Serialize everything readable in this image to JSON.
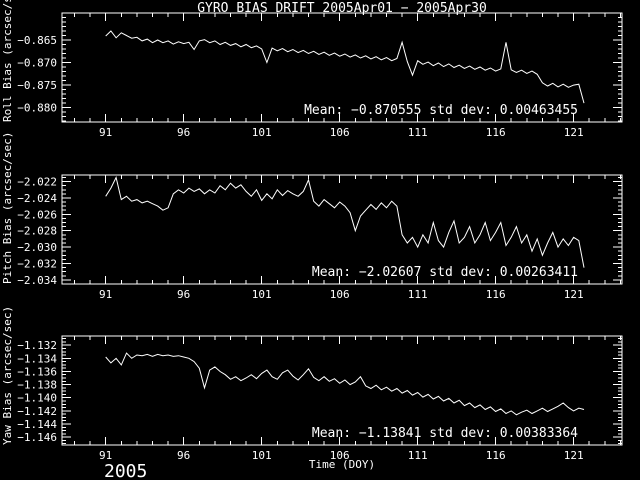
{
  "title": "GYRO BIAS DRIFT 2005Apr01 − 2005Apr30",
  "xlabel": "Time (DOY)",
  "year_label": "2005",
  "colors": {
    "background": "#000000",
    "foreground": "#ffffff"
  },
  "chart_data": [
    {
      "type": "line",
      "name": "roll-bias",
      "ylabel": "Roll Bias (arcsec/sec)",
      "mean": -0.870555,
      "std_dev": 0.00463455,
      "mean_label": "Mean: −0.870555 std dev: 0.00463455",
      "xlim": [
        88.2,
        124.1
      ],
      "ylim": [
        -0.8832,
        -0.859
      ],
      "xticks": [
        91,
        96,
        101,
        106,
        111,
        116,
        121
      ],
      "x_minor_step": 1,
      "yticks": [
        -0.865,
        -0.87,
        -0.875,
        -0.88
      ],
      "ytick_labels": [
        "−0.865",
        "−0.870",
        "−0.875",
        "−0.880"
      ],
      "y_minor_step": 0.001,
      "x_start": 91.0,
      "x_step": 0.33333,
      "y": [
        -0.8641,
        -0.863,
        -0.8645,
        -0.8634,
        -0.864,
        -0.8646,
        -0.8644,
        -0.8652,
        -0.8648,
        -0.8656,
        -0.865,
        -0.8656,
        -0.8652,
        -0.8659,
        -0.8654,
        -0.8658,
        -0.8655,
        -0.8671,
        -0.8652,
        -0.8649,
        -0.8656,
        -0.8652,
        -0.866,
        -0.8655,
        -0.8662,
        -0.8658,
        -0.8665,
        -0.866,
        -0.8667,
        -0.8663,
        -0.867,
        -0.87,
        -0.8668,
        -0.8674,
        -0.8669,
        -0.8676,
        -0.8671,
        -0.8678,
        -0.8673,
        -0.868,
        -0.8675,
        -0.8682,
        -0.8677,
        -0.8684,
        -0.8679,
        -0.8686,
        -0.8681,
        -0.8688,
        -0.8683,
        -0.869,
        -0.8685,
        -0.8692,
        -0.8687,
        -0.8694,
        -0.8689,
        -0.8696,
        -0.8691,
        -0.8655,
        -0.8698,
        -0.8728,
        -0.8696,
        -0.8704,
        -0.8699,
        -0.8707,
        -0.8701,
        -0.8709,
        -0.8703,
        -0.8711,
        -0.8706,
        -0.8713,
        -0.8708,
        -0.8715,
        -0.871,
        -0.8717,
        -0.8712,
        -0.8719,
        -0.8714,
        -0.8655,
        -0.8716,
        -0.8722,
        -0.8717,
        -0.8724,
        -0.8719,
        -0.8726,
        -0.8745,
        -0.8752,
        -0.8746,
        -0.8754,
        -0.8748,
        -0.8755,
        -0.875,
        -0.8748,
        -0.879
      ]
    },
    {
      "type": "line",
      "name": "pitch-bias",
      "ylabel": "Pitch Bias (arcsec/sec)",
      "mean": -2.02607,
      "std_dev": 0.00263411,
      "mean_label": "Mean: −2.02607 std dev: 0.00263411",
      "xlim": [
        88.2,
        124.1
      ],
      "ylim": [
        -2.0345,
        -2.0212
      ],
      "xticks": [
        91,
        96,
        101,
        106,
        111,
        116,
        121
      ],
      "x_minor_step": 1,
      "yticks": [
        -2.022,
        -2.024,
        -2.026,
        -2.028,
        -2.03,
        -2.032,
        -2.034
      ],
      "ytick_labels": [
        "−2.022",
        "−2.024",
        "−2.026",
        "−2.028",
        "−2.030",
        "−2.032",
        "−2.034"
      ],
      "y_minor_step": 0.0005,
      "x_start": 91.0,
      "x_step": 0.33333,
      "y": [
        -2.0238,
        -2.0228,
        -2.0215,
        -2.0242,
        -2.0238,
        -2.0244,
        -2.0242,
        -2.0246,
        -2.0244,
        -2.0247,
        -2.025,
        -2.0255,
        -2.0252,
        -2.0235,
        -2.023,
        -2.0234,
        -2.0228,
        -2.0232,
        -2.0229,
        -2.0235,
        -2.023,
        -2.0234,
        -2.0225,
        -2.023,
        -2.0222,
        -2.0228,
        -2.0224,
        -2.0232,
        -2.0238,
        -2.023,
        -2.0243,
        -2.0235,
        -2.0241,
        -2.023,
        -2.0237,
        -2.0231,
        -2.0235,
        -2.0238,
        -2.0232,
        -2.0218,
        -2.0244,
        -2.025,
        -2.0242,
        -2.0247,
        -2.0252,
        -2.0245,
        -2.025,
        -2.0258,
        -2.028,
        -2.0262,
        -2.0255,
        -2.0248,
        -2.0254,
        -2.0246,
        -2.0252,
        -2.0244,
        -2.025,
        -2.0285,
        -2.0295,
        -2.0288,
        -2.03,
        -2.0285,
        -2.0295,
        -2.027,
        -2.0292,
        -2.03,
        -2.0282,
        -2.0268,
        -2.0295,
        -2.0288,
        -2.0275,
        -2.0295,
        -2.0285,
        -2.027,
        -2.0292,
        -2.0282,
        -2.027,
        -2.0298,
        -2.0288,
        -2.0275,
        -2.0295,
        -2.0285,
        -2.0305,
        -2.029,
        -2.031,
        -2.0295,
        -2.0282,
        -2.03,
        -2.029,
        -2.0298,
        -2.0288,
        -2.0292,
        -2.0325
      ]
    },
    {
      "type": "line",
      "name": "yaw-bias",
      "ylabel": "Yaw Bias (arcsec/sec)",
      "mean": -1.13841,
      "std_dev": 0.00383364,
      "mean_label": "Mean: −1.13841 std dev: 0.00383364",
      "xlim": [
        88.2,
        124.1
      ],
      "ylim": [
        -1.1472,
        -1.1306
      ],
      "xticks": [
        91,
        96,
        101,
        106,
        111,
        116,
        121
      ],
      "x_minor_step": 1,
      "yticks": [
        -1.132,
        -1.134,
        -1.136,
        -1.138,
        -1.14,
        -1.142,
        -1.144,
        -1.146
      ],
      "ytick_labels": [
        "−1.132",
        "−1.134",
        "−1.136",
        "−1.138",
        "−1.140",
        "−1.142",
        "−1.144",
        "−1.146"
      ],
      "y_minor_step": 0.0005,
      "x_start": 91.0,
      "x_step": 0.33333,
      "y": [
        -1.1338,
        -1.1347,
        -1.134,
        -1.135,
        -1.1332,
        -1.134,
        -1.1335,
        -1.1336,
        -1.1334,
        -1.1337,
        -1.1334,
        -1.1336,
        -1.1335,
        -1.1337,
        -1.1336,
        -1.1338,
        -1.134,
        -1.1345,
        -1.1355,
        -1.1385,
        -1.1358,
        -1.1353,
        -1.136,
        -1.1365,
        -1.1372,
        -1.1368,
        -1.1374,
        -1.137,
        -1.1365,
        -1.1371,
        -1.1363,
        -1.1358,
        -1.1368,
        -1.1372,
        -1.1362,
        -1.1358,
        -1.1367,
        -1.1373,
        -1.1365,
        -1.1356,
        -1.1369,
        -1.1374,
        -1.1368,
        -1.1375,
        -1.1371,
        -1.1378,
        -1.1373,
        -1.138,
        -1.1376,
        -1.1368,
        -1.1382,
        -1.1386,
        -1.1381,
        -1.1388,
        -1.1384,
        -1.139,
        -1.1386,
        -1.1393,
        -1.1389,
        -1.1396,
        -1.1392,
        -1.1399,
        -1.1395,
        -1.1402,
        -1.1398,
        -1.1405,
        -1.1401,
        -1.1408,
        -1.1404,
        -1.1412,
        -1.1408,
        -1.1415,
        -1.1411,
        -1.1418,
        -1.1414,
        -1.1421,
        -1.1417,
        -1.1424,
        -1.142,
        -1.1426,
        -1.1422,
        -1.1419,
        -1.1424,
        -1.142,
        -1.1416,
        -1.1421,
        -1.1417,
        -1.1413,
        -1.1408,
        -1.1415,
        -1.142,
        -1.1416,
        -1.1418
      ]
    }
  ]
}
